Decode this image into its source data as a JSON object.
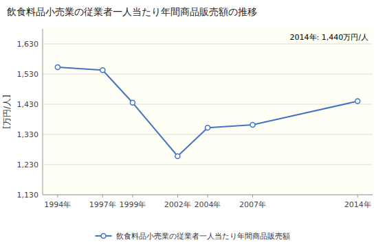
{
  "chart_data": {
    "type": "line",
    "title": "飲食料品小売業の従業者一人当たり年間商品販売額の推移",
    "y_label": "[万円/人]",
    "annotation": "2014年: 1,440万円/人",
    "x": [
      1994,
      1997,
      1999,
      2002,
      2004,
      2007,
      2014
    ],
    "series": [
      {
        "name": "飲食料品小売業の従業者一人当たり年間商品販売額",
        "color": "#4472c4",
        "marker": "circle",
        "values": [
          1553,
          1543,
          1435,
          1258,
          1352,
          1362,
          1440
        ]
      }
    ],
    "xlim": [
      1993,
      2015
    ],
    "xticks": [
      {
        "value": 1994,
        "label": "1994年"
      },
      {
        "value": 1997,
        "label": "1997年"
      },
      {
        "value": 1999,
        "label": "1999年"
      },
      {
        "value": 2002,
        "label": "2002年"
      },
      {
        "value": 2004,
        "label": "2004年"
      },
      {
        "value": 2007,
        "label": "2007年"
      },
      {
        "value": 2014,
        "label": "2014年"
      }
    ],
    "ylim": [
      1130,
      1680
    ],
    "yticks": [
      {
        "value": 1130,
        "label": "1,130"
      },
      {
        "value": 1230,
        "label": "1,230"
      },
      {
        "value": 1330,
        "label": "1,330"
      },
      {
        "value": 1430,
        "label": "1,430"
      },
      {
        "value": 1530,
        "label": "1,530"
      },
      {
        "value": 1630,
        "label": "1,630"
      }
    ],
    "grid": true,
    "legend": "bottom"
  }
}
